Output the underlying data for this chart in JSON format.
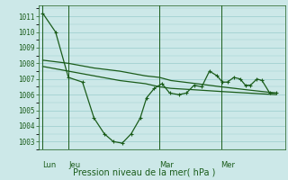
{
  "background_color": "#cce8e8",
  "grid_color": "#99cccc",
  "line_color": "#1a5c1a",
  "title": "Pression niveau de la mer( hPa )",
  "xlabel_ticks": [
    "Lun",
    "Jeu",
    "Mar",
    "Mer"
  ],
  "xlabel_tick_xpos": [
    0.055,
    0.155,
    0.51,
    0.75
  ],
  "ylim": [
    1002.5,
    1011.7
  ],
  "yticks": [
    1003,
    1004,
    1005,
    1006,
    1007,
    1008,
    1009,
    1010,
    1011
  ],
  "vline_positions": [
    0.055,
    0.155,
    0.51,
    0.75
  ],
  "series1": {
    "x": [
      0.055,
      0.105,
      0.155,
      0.21,
      0.255,
      0.295,
      0.33,
      0.365,
      0.4,
      0.435,
      0.46,
      0.49,
      0.52,
      0.55,
      0.585,
      0.615,
      0.645,
      0.675,
      0.705,
      0.735,
      0.755,
      0.775,
      0.8,
      0.825,
      0.845,
      0.865,
      0.89,
      0.91,
      0.94,
      0.965
    ],
    "y": [
      1011.2,
      1010.0,
      1007.1,
      1006.8,
      1004.5,
      1003.5,
      1003.0,
      1002.9,
      1003.5,
      1004.5,
      1005.8,
      1006.4,
      1006.7,
      1006.1,
      1006.0,
      1006.1,
      1006.6,
      1006.5,
      1007.5,
      1007.2,
      1006.8,
      1006.8,
      1007.1,
      1007.0,
      1006.6,
      1006.6,
      1007.0,
      1006.9,
      1006.1,
      1006.1
    ]
  },
  "series2": {
    "x": [
      0.055,
      0.155,
      0.255,
      0.355,
      0.455,
      0.51,
      0.555,
      0.655,
      0.75,
      0.855,
      0.965
    ],
    "y": [
      1008.2,
      1008.0,
      1007.7,
      1007.5,
      1007.2,
      1007.1,
      1006.9,
      1006.7,
      1006.5,
      1006.3,
      1006.1
    ]
  },
  "series3": {
    "x": [
      0.055,
      0.155,
      0.255,
      0.355,
      0.455,
      0.51,
      0.555,
      0.655,
      0.75,
      0.855,
      0.965
    ],
    "y": [
      1007.8,
      1007.5,
      1007.2,
      1006.9,
      1006.7,
      1006.5,
      1006.4,
      1006.3,
      1006.2,
      1006.1,
      1006.0
    ]
  }
}
